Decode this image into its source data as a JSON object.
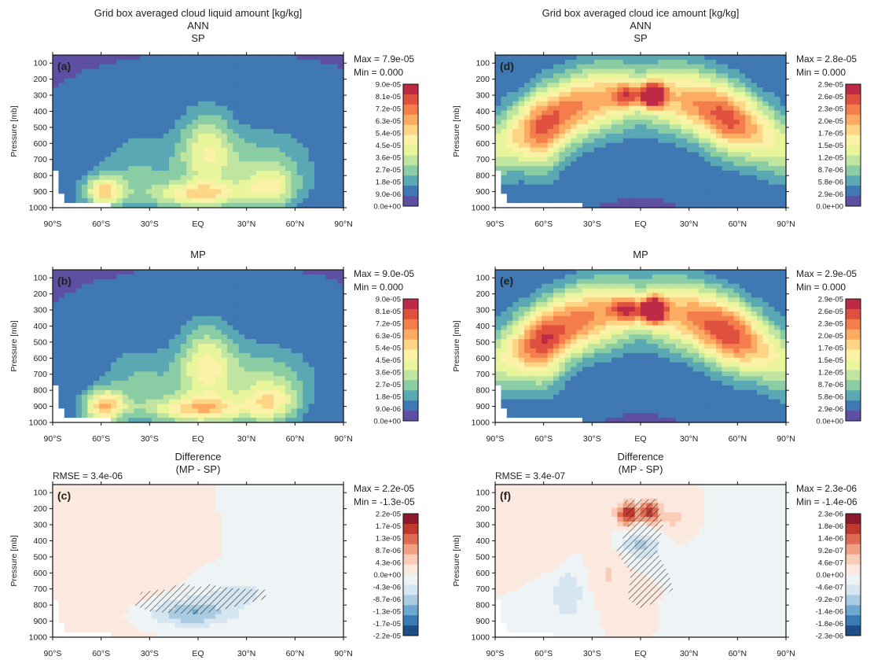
{
  "figure": {
    "col_titles": [
      "Grid box averaged cloud liquid amount [kg/kg]",
      "Grid box averaged cloud ice amount [kg/kg]"
    ],
    "season": "ANN",
    "top_label": "SP",
    "mid_label": "MP",
    "diff_title": "Difference",
    "diff_subtitle": "(MP - SP)"
  },
  "chart_data": [
    {
      "type": "heatmap",
      "panel": "(a)",
      "variable": "liquid",
      "case": "SP",
      "ylabel": "Pressure [mb]",
      "x_ticks": [
        "90°S",
        "60°S",
        "30°S",
        "EQ",
        "30°N",
        "60°N",
        "90°N"
      ],
      "y_ticks": [
        100,
        200,
        300,
        400,
        500,
        600,
        700,
        800,
        900,
        1000
      ],
      "stats": [
        "Max = 7.9e-05",
        "Min = 0.000"
      ],
      "cbar_labels": [
        "9.0e-05",
        "8.1e-05",
        "7.2e-05",
        "6.3e-05",
        "5.4e-05",
        "4.5e-05",
        "3.6e-05",
        "2.7e-05",
        "1.8e-05",
        "9.0e-06",
        "0.0e+00"
      ],
      "cbar_colors": [
        "#bd2a45",
        "#e0503f",
        "#f47d4c",
        "#fbab62",
        "#fdd584",
        "#fbf2a8",
        "#e8f59b",
        "#bfe5a0",
        "#8acda4",
        "#5aa8b4",
        "#3f78b3",
        "#5e4fa2"
      ],
      "field": {
        "kind": "liquid",
        "scale": 1.0,
        "hatch": false
      }
    },
    {
      "type": "heatmap",
      "panel": "(d)",
      "variable": "ice",
      "case": "SP",
      "ylabel": "Pressure [mb]",
      "x_ticks": [
        "90°S",
        "60°S",
        "30°S",
        "EQ",
        "30°N",
        "60°N",
        "90°N"
      ],
      "y_ticks": [
        100,
        200,
        300,
        400,
        500,
        600,
        700,
        800,
        900,
        1000
      ],
      "stats": [
        "Max = 2.8e-05",
        "Min = 0.000"
      ],
      "cbar_labels": [
        "2.9e-05",
        "2.6e-05",
        "2.3e-05",
        "2.0e-05",
        "1.7e-05",
        "1.5e-05",
        "1.2e-05",
        "8.7e-06",
        "5.8e-06",
        "2.9e-06",
        "0.0e+00"
      ],
      "cbar_colors": [
        "#bd2a45",
        "#e0503f",
        "#f47d4c",
        "#fbab62",
        "#fdd584",
        "#fbf2a8",
        "#e8f59b",
        "#bfe5a0",
        "#8acda4",
        "#5aa8b4",
        "#3f78b3",
        "#5e4fa2"
      ],
      "field": {
        "kind": "ice",
        "scale": 1.0,
        "hatch": false
      }
    },
    {
      "type": "heatmap",
      "panel": "(b)",
      "variable": "liquid",
      "case": "MP",
      "ylabel": "Pressure [mb]",
      "x_ticks": [
        "90°S",
        "60°S",
        "30°S",
        "EQ",
        "30°N",
        "60°N",
        "90°N"
      ],
      "y_ticks": [
        100,
        200,
        300,
        400,
        500,
        600,
        700,
        800,
        900,
        1000
      ],
      "stats": [
        "Max = 9.0e-05",
        "Min = 0.000"
      ],
      "cbar_labels": [
        "9.0e-05",
        "8.1e-05",
        "7.2e-05",
        "6.3e-05",
        "5.4e-05",
        "4.5e-05",
        "3.6e-05",
        "2.7e-05",
        "1.8e-05",
        "9.0e-06",
        "0.0e+00"
      ],
      "cbar_colors": [
        "#bd2a45",
        "#e0503f",
        "#f47d4c",
        "#fbab62",
        "#fdd584",
        "#fbf2a8",
        "#e8f59b",
        "#bfe5a0",
        "#8acda4",
        "#5aa8b4",
        "#3f78b3",
        "#5e4fa2"
      ],
      "field": {
        "kind": "liquid",
        "scale": 1.1,
        "hatch": false
      }
    },
    {
      "type": "heatmap",
      "panel": "(e)",
      "variable": "ice",
      "case": "MP",
      "ylabel": "Pressure [mb]",
      "x_ticks": [
        "90°S",
        "60°S",
        "30°S",
        "EQ",
        "30°N",
        "60°N",
        "90°N"
      ],
      "y_ticks": [
        100,
        200,
        300,
        400,
        500,
        600,
        700,
        800,
        900,
        1000
      ],
      "stats": [
        "Max = 2.9e-05",
        "Min = 0.000"
      ],
      "cbar_labels": [
        "2.9e-05",
        "2.6e-05",
        "2.3e-05",
        "2.0e-05",
        "1.7e-05",
        "1.5e-05",
        "1.2e-05",
        "8.7e-06",
        "5.8e-06",
        "2.9e-06",
        "0.0e+00"
      ],
      "cbar_colors": [
        "#bd2a45",
        "#e0503f",
        "#f47d4c",
        "#fbab62",
        "#fdd584",
        "#fbf2a8",
        "#e8f59b",
        "#bfe5a0",
        "#8acda4",
        "#5aa8b4",
        "#3f78b3",
        "#5e4fa2"
      ],
      "field": {
        "kind": "ice",
        "scale": 1.05,
        "hatch": false
      }
    },
    {
      "type": "heatmap",
      "panel": "(c)",
      "variable": "liquid",
      "case": "MP - SP",
      "ylabel": "Pressure [mb]",
      "rmse": "RMSE = 3.4e-06",
      "x_ticks": [
        "90°S",
        "60°S",
        "30°S",
        "EQ",
        "30°N",
        "60°N",
        "90°N"
      ],
      "y_ticks": [
        100,
        200,
        300,
        400,
        500,
        600,
        700,
        800,
        900,
        1000
      ],
      "stats": [
        "Max = 2.2e-05",
        "Min = -1.3e-05"
      ],
      "cbar_labels": [
        "2.2e-05",
        "1.7e-05",
        "1.3e-05",
        "8.7e-06",
        "4.3e-06",
        "0.0e+00",
        "-4.3e-06",
        "-8.7e-06",
        "-1.3e-05",
        "-1.7e-05",
        "-2.2e-05"
      ],
      "cbar_colors": [
        "#8b1a2c",
        "#c0392f",
        "#de6b52",
        "#f0a083",
        "#f9cdb8",
        "#fbe9df",
        "#eef3f5",
        "#d6e6f0",
        "#a9cce3",
        "#6da8d0",
        "#3b7bb5",
        "#1f4e87"
      ],
      "field": {
        "kind": "dliquid",
        "scale": 1.0,
        "hatch": true
      }
    },
    {
      "type": "heatmap",
      "panel": "(f)",
      "variable": "ice",
      "case": "MP - SP",
      "ylabel": "Pressure [mb]",
      "rmse": "RMSE = 3.4e-07",
      "x_ticks": [
        "90°S",
        "60°S",
        "30°S",
        "EQ",
        "30°N",
        "60°N",
        "90°N"
      ],
      "y_ticks": [
        100,
        200,
        300,
        400,
        500,
        600,
        700,
        800,
        900,
        1000
      ],
      "stats": [
        "Max = 2.3e-06",
        "Min = -1.4e-06"
      ],
      "cbar_labels": [
        "2.3e-06",
        "1.8e-06",
        "1.4e-06",
        "9.2e-07",
        "4.6e-07",
        "0.0e+00",
        "-4.6e-07",
        "-9.2e-07",
        "-1.4e-06",
        "-1.8e-06",
        "-2.3e-06"
      ],
      "cbar_colors": [
        "#8b1a2c",
        "#c0392f",
        "#de6b52",
        "#f0a083",
        "#f9cdb8",
        "#fbe9df",
        "#eef3f5",
        "#d6e6f0",
        "#a9cce3",
        "#6da8d0",
        "#3b7bb5",
        "#1f4e87"
      ],
      "field": {
        "kind": "dice",
        "scale": 1.0,
        "hatch": true
      }
    }
  ]
}
